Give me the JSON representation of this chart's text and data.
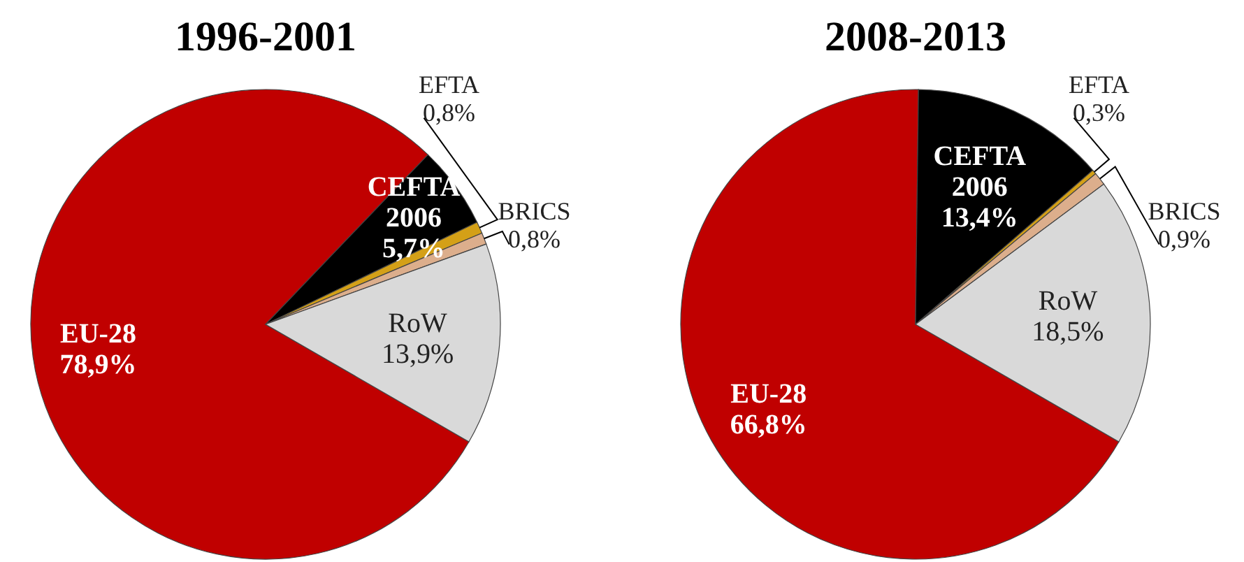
{
  "chart_data": [
    {
      "type": "pie",
      "title": "1996-2001",
      "categories": [
        "EU-28",
        "CEFTA 2006",
        "EFTA",
        "BRICS",
        "RoW"
      ],
      "values": [
        78.9,
        5.7,
        0.8,
        0.8,
        13.9
      ],
      "colors": [
        "#c00000",
        "#000000",
        "#d4a017",
        "#dcae8c",
        "#d9d9d9"
      ],
      "value_labels": [
        "78,9%",
        "5,7%",
        "0,8%",
        "0,8%",
        "13,9%"
      ]
    },
    {
      "type": "pie",
      "title": "2008-2013",
      "categories": [
        "EU-28",
        "CEFTA 2006",
        "EFTA",
        "BRICS",
        "RoW"
      ],
      "values": [
        66.8,
        13.4,
        0.3,
        0.9,
        18.5
      ],
      "colors": [
        "#c00000",
        "#000000",
        "#d4a017",
        "#dcae8c",
        "#d9d9d9"
      ],
      "value_labels": [
        "66,8%",
        "13,4%",
        "0,3%",
        "0,9%",
        "18,5%"
      ]
    }
  ]
}
